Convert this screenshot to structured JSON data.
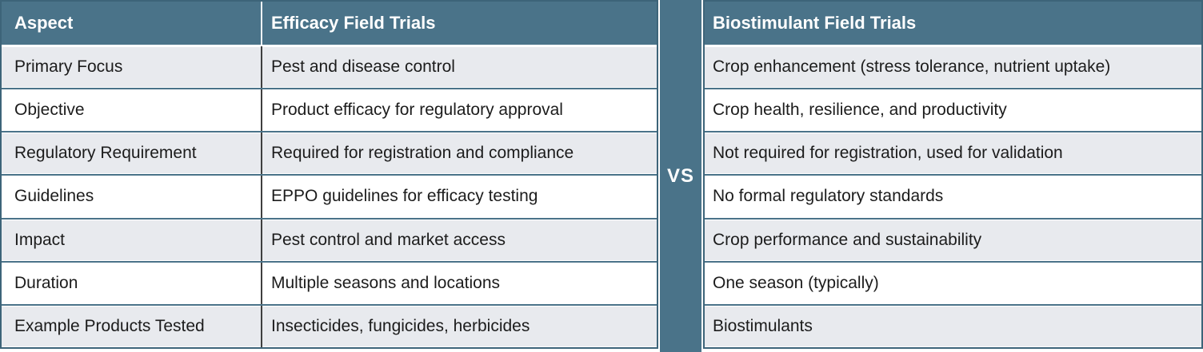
{
  "comparison": {
    "vs_label": "VS",
    "left_table": {
      "headers": {
        "aspect": "Aspect",
        "trials": "Efficacy Field Trials"
      },
      "rows": [
        {
          "aspect": "Primary Focus",
          "value": "Pest and disease control"
        },
        {
          "aspect": "Objective",
          "value": "Product efficacy for regulatory approval"
        },
        {
          "aspect": "Regulatory Requirement",
          "value": "Required for registration and compliance"
        },
        {
          "aspect": "Guidelines",
          "value": "EPPO guidelines for efficacy testing"
        },
        {
          "aspect": "Impact",
          "value": "Pest control and market access"
        },
        {
          "aspect": "Duration",
          "value": "Multiple seasons and locations"
        },
        {
          "aspect": "Example Products Tested",
          "value": "Insecticides, fungicides, herbicides"
        }
      ]
    },
    "right_table": {
      "header": "Biostimulant Field Trials",
      "rows": [
        "Crop enhancement (stress tolerance, nutrient uptake)",
        "Crop health, resilience, and productivity",
        "Not required for registration, used for validation",
        "No formal regulatory standards",
        "Crop performance and sustainability",
        "One season (typically)",
        "Biostimulants"
      ]
    },
    "colors": {
      "header_bg": "#4a7389",
      "outer_border": "#3d6479",
      "row_alt_bg": "#e8eaee",
      "row_bg": "#ffffff",
      "header_text": "#ffffff",
      "body_text": "#1c1c1c",
      "row_divider": "#4a7389",
      "column_divider_dark": "#3f3f3f"
    }
  }
}
